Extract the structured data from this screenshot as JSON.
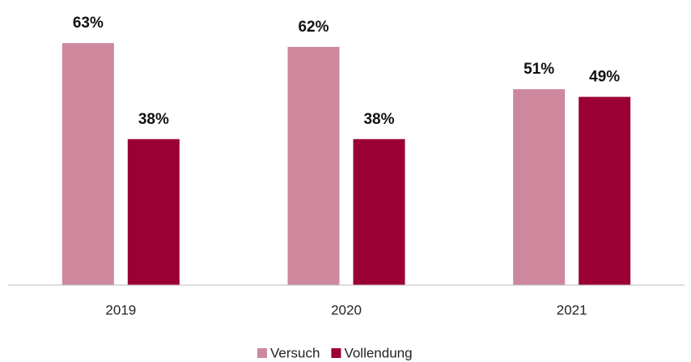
{
  "chart_data": {
    "type": "bar",
    "categories": [
      "2019",
      "2020",
      "2021"
    ],
    "series": [
      {
        "name": "Versuch",
        "color": "#cd889d",
        "values": [
          63,
          62,
          51
        ],
        "value_labels": [
          "63%",
          "62%",
          "51%"
        ]
      },
      {
        "name": "Vollendung",
        "color": "#9b0034",
        "values": [
          38,
          38,
          49
        ],
        "value_labels": [
          "38%",
          "38%",
          "49%"
        ]
      }
    ],
    "ylim": [
      0,
      70
    ]
  }
}
